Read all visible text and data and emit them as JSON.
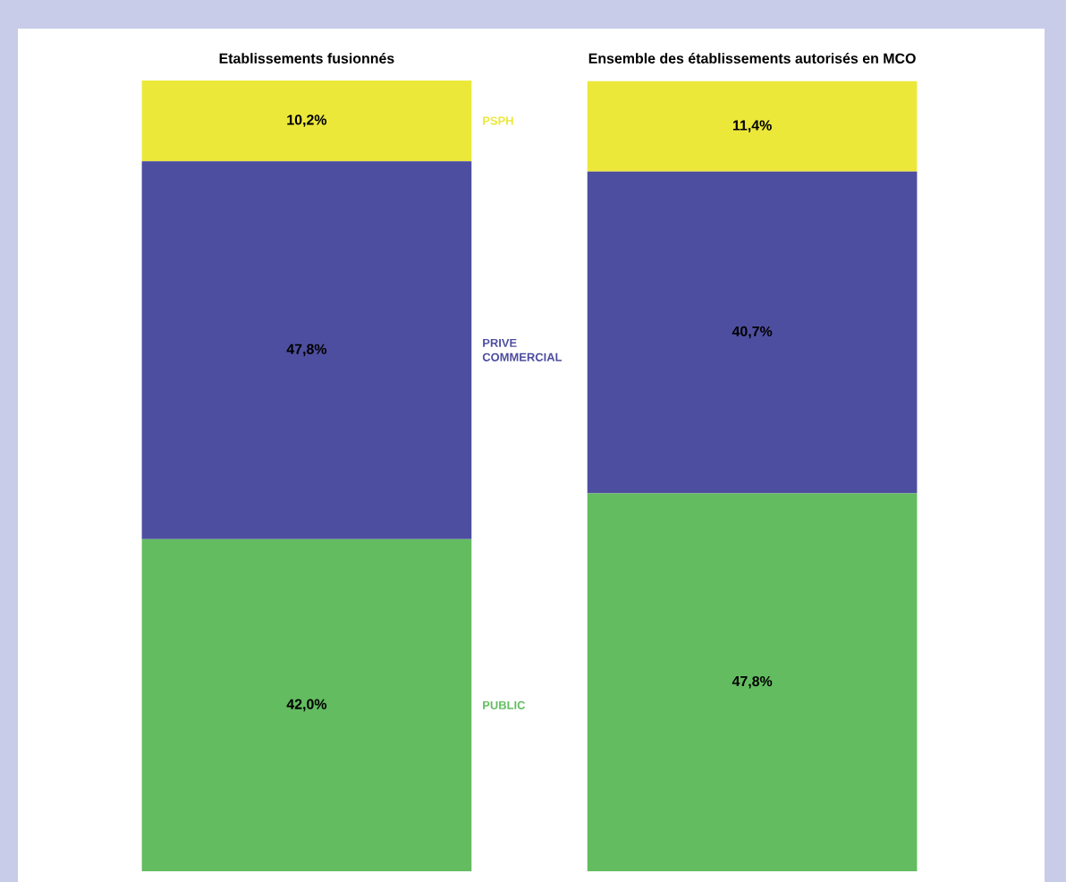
{
  "chart_data": {
    "type": "bar",
    "stacked": true,
    "categories": [
      "Etablissements fusionnés",
      "Ensemble des établissements autorisés en MCO"
    ],
    "series": [
      {
        "name": "PUBLIC",
        "color": "#63bc60",
        "values": [
          42.0,
          47.8
        ],
        "value_labels": [
          "42,0%",
          "47,8%"
        ]
      },
      {
        "name": "PRIVE COMMERCIAL",
        "color": "#4e4ea0",
        "values": [
          47.8,
          40.7
        ],
        "value_labels": [
          "47,8%",
          "40,7%"
        ]
      },
      {
        "name": "PSPH",
        "color": "#ece83a",
        "values": [
          10.2,
          11.4
        ],
        "value_labels": [
          "10,2%",
          "11,4%"
        ]
      }
    ]
  }
}
